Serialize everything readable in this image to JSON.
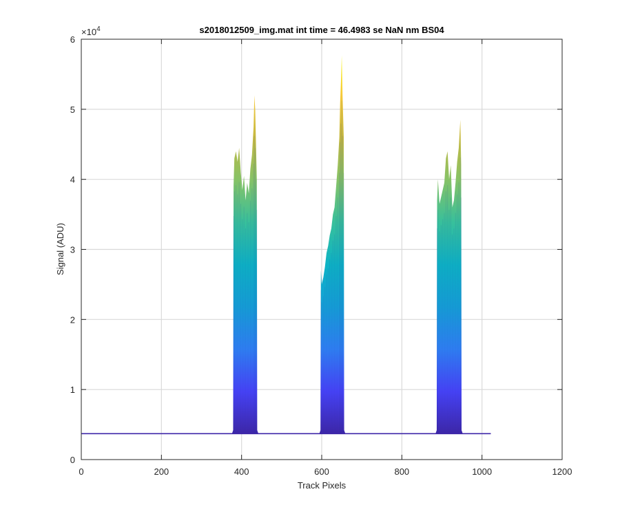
{
  "chart_data": {
    "type": "area",
    "title": "s2018012509_img.mat int time = 46.4983 se  NaN nm BS04",
    "xlabel": "Track Pixels",
    "ylabel": "Signal (ADU)",
    "y_exponent_label": "×10",
    "y_exponent_power": "4",
    "xlim": [
      0,
      1200
    ],
    "ylim": [
      0,
      6
    ],
    "y_scale_multiplier": 10000,
    "x_ticks": [
      0,
      200,
      400,
      600,
      800,
      1000,
      1200
    ],
    "x_tick_labels": [
      "0",
      "200",
      "400",
      "600",
      "800",
      "1000",
      "1200"
    ],
    "y_ticks": [
      0,
      1,
      2,
      3,
      4,
      5,
      6
    ],
    "y_tick_labels": [
      "0",
      "1",
      "2",
      "3",
      "4",
      "5",
      "6"
    ],
    "grid": true,
    "colormap": [
      "#3e26a8",
      "#4743f8",
      "#2f80f4",
      "#159fd7",
      "#0db3c5",
      "#38c09b",
      "#86c266",
      "#c6b941",
      "#f6c93a",
      "#f9fb15"
    ],
    "baseline": 0.37,
    "data_x_range": [
      0,
      1022
    ],
    "peaks": [
      {
        "x_start": 380,
        "x_end": 438,
        "envelope_x": [
          380,
          382,
          386,
          390,
          394,
          398,
          402,
          406,
          410,
          414,
          418,
          422,
          426,
          430,
          432,
          434,
          436,
          438
        ],
        "envelope_y": [
          3.9,
          4.3,
          4.4,
          4.25,
          4.45,
          4.1,
          3.85,
          4.05,
          3.7,
          3.95,
          3.8,
          4.15,
          4.35,
          4.75,
          5.2,
          5.0,
          4.5,
          4.0
        ]
      },
      {
        "x_start": 598,
        "x_end": 655,
        "envelope_x": [
          598,
          600,
          604,
          608,
          612,
          616,
          620,
          624,
          628,
          632,
          636,
          640,
          644,
          646,
          648,
          650,
          652,
          655
        ],
        "envelope_y": [
          2.7,
          2.5,
          2.6,
          2.75,
          2.95,
          3.05,
          3.2,
          3.3,
          3.5,
          3.6,
          3.9,
          4.2,
          4.6,
          5.1,
          5.4,
          5.77,
          5.2,
          4.6
        ]
      },
      {
        "x_start": 888,
        "x_end": 948,
        "envelope_x": [
          888,
          890,
          894,
          898,
          902,
          906,
          910,
          914,
          918,
          922,
          926,
          930,
          934,
          938,
          942,
          946,
          948
        ],
        "envelope_y": [
          3.7,
          4.0,
          3.65,
          3.75,
          3.85,
          3.95,
          4.3,
          4.4,
          4.0,
          4.2,
          3.6,
          3.7,
          3.95,
          4.25,
          4.45,
          4.85,
          4.2
        ]
      }
    ]
  }
}
